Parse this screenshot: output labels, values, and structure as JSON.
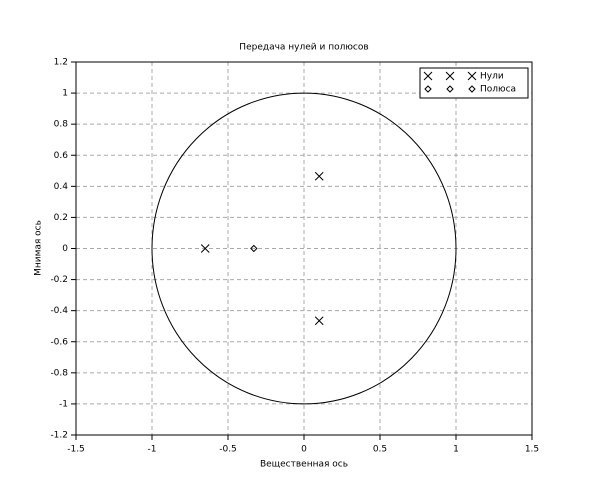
{
  "chart_data": {
    "type": "scatter",
    "title": "Передача нулей и полюсов",
    "x_label": "Вещественная ось",
    "y_label": "Мнимая ось",
    "series": [
      {
        "name": "Нули",
        "color": "#000000",
        "marker": "x",
        "x": [
          -0.65,
          0.1,
          0.1
        ],
        "y": [
          0,
          0.465,
          -0.465
        ]
      },
      {
        "name": "Полюса",
        "color": "#000000",
        "marker": "diamond",
        "x": [
          -0.33
        ],
        "y": [
          0
        ]
      }
    ],
    "xlim": [
      -1.5,
      1.5
    ],
    "xticks": [
      -1.5,
      -1,
      -0.5,
      0,
      0.5,
      1,
      1.5
    ],
    "ylim": [
      -1.2,
      1.2
    ],
    "yticks": [
      -1.2,
      -1,
      -0.8,
      -0.6,
      -0.4,
      -0.2,
      0,
      0.2,
      0.4,
      0.6,
      0.8,
      1,
      1.2
    ],
    "grid": true,
    "legend": "upper right"
  }
}
